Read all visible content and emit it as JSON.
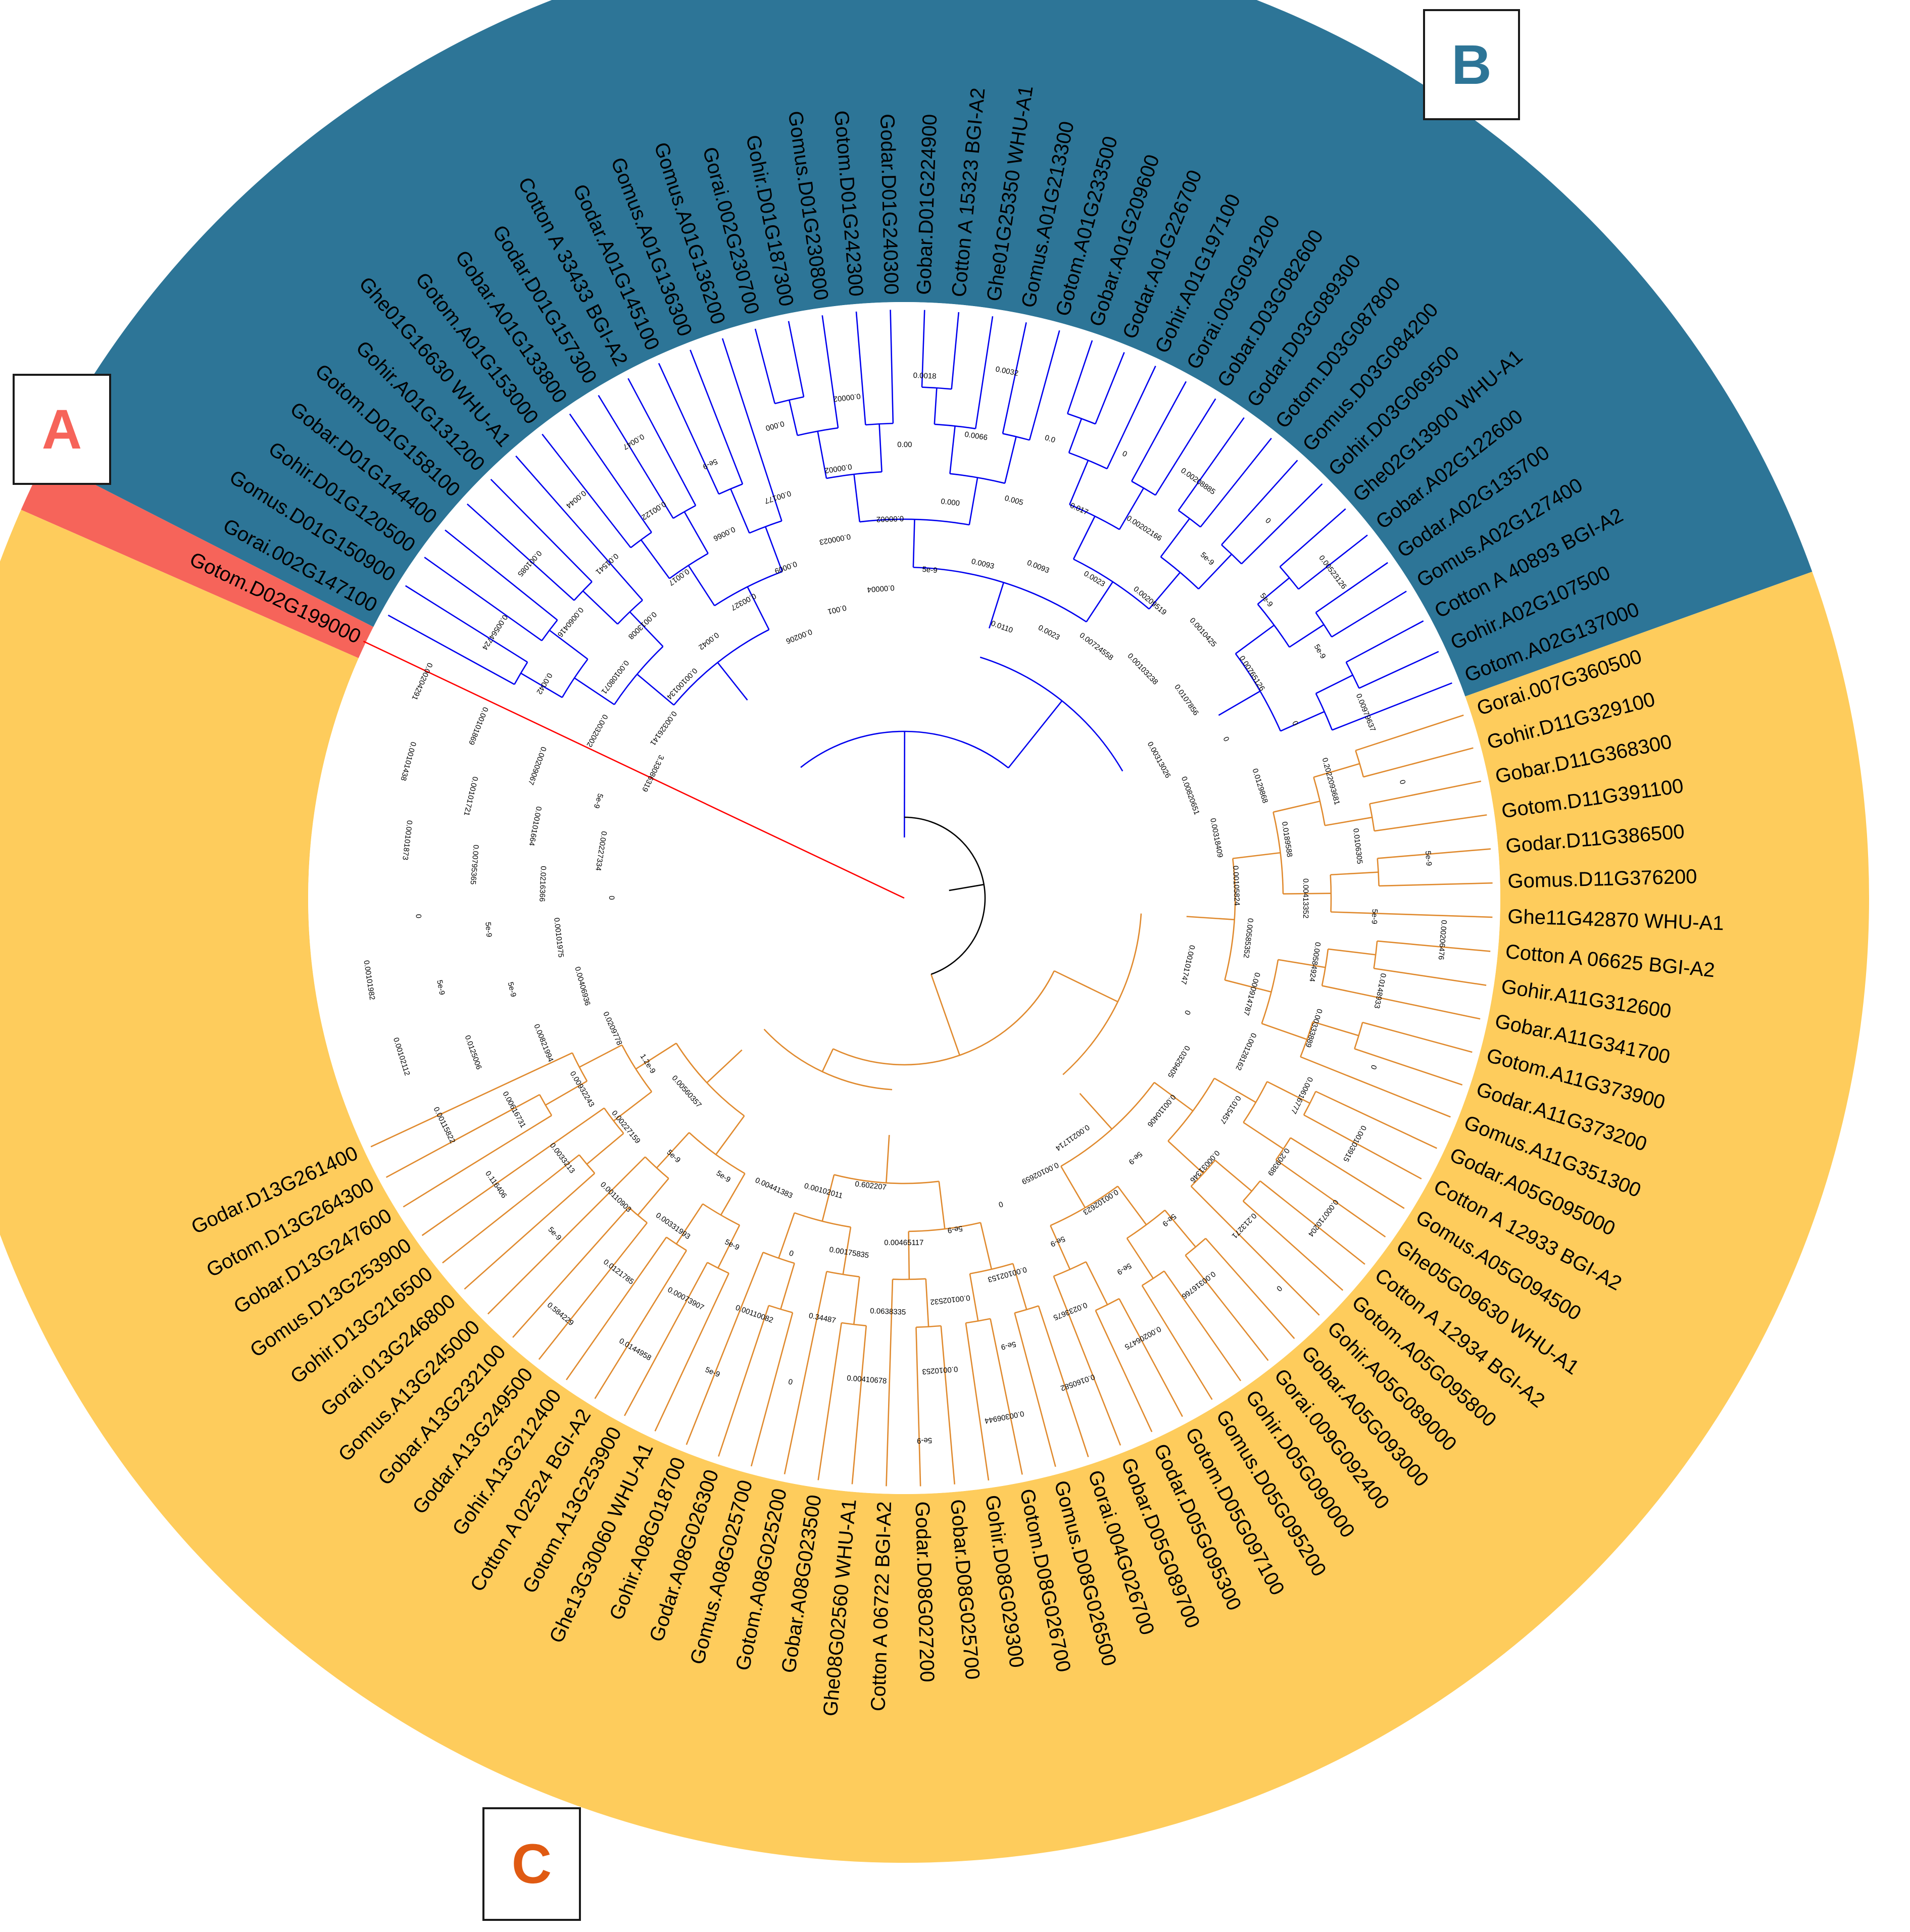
{
  "groups": [
    {
      "id": "A",
      "label": "A",
      "color": "#f6645a"
    },
    {
      "id": "B",
      "label": "B",
      "color": "#2d7597"
    },
    {
      "id": "C",
      "label": "C",
      "color": "#fecc5c"
    }
  ],
  "colors": {
    "branch_a": "#ff0000",
    "branch_b": "#0000ee",
    "branch_c": "#e08a2e",
    "branch_root": "#000000",
    "label_a": "#f6645a",
    "label_b": "#2d7597",
    "label_c": "#e05a12"
  },
  "leaves": [
    {
      "label": "Gotom.D02G199000",
      "group": "A"
    },
    {
      "label": "Gorai.002G147100",
      "group": "B"
    },
    {
      "label": "Gomus.D01G150900",
      "group": "B"
    },
    {
      "label": "Gohir.D01G120500",
      "group": "B"
    },
    {
      "label": "Gobar.D01G144400",
      "group": "B"
    },
    {
      "label": "Gotom.D01G158100",
      "group": "B"
    },
    {
      "label": "Gohir.A01G131200",
      "group": "B"
    },
    {
      "label": "Ghe01G16630 WHU-A1",
      "group": "B"
    },
    {
      "label": "Gotom.A01G153000",
      "group": "B"
    },
    {
      "label": "Gobar.A01G133800",
      "group": "B"
    },
    {
      "label": "Godar.D01G157300",
      "group": "B"
    },
    {
      "label": "Cotton A 33433 BGI-A2",
      "group": "B"
    },
    {
      "label": "Godar.A01G145100",
      "group": "B"
    },
    {
      "label": "Gomus.A01G136300",
      "group": "B"
    },
    {
      "label": "Gomus.A01G136200",
      "group": "B"
    },
    {
      "label": "Gorai.002G230700",
      "group": "B"
    },
    {
      "label": "Gohir.D01G187300",
      "group": "B"
    },
    {
      "label": "Gomus.D01G230800",
      "group": "B"
    },
    {
      "label": "Gotom.D01G242300",
      "group": "B"
    },
    {
      "label": "Godar.D01G240300",
      "group": "B"
    },
    {
      "label": "Gobar.D01G224900",
      "group": "B"
    },
    {
      "label": "Cotton A 15323 BGI-A2",
      "group": "B"
    },
    {
      "label": "Ghe01G25350 WHU-A1",
      "group": "B"
    },
    {
      "label": "Gomus.A01G213300",
      "group": "B"
    },
    {
      "label": "Gotom.A01G233500",
      "group": "B"
    },
    {
      "label": "Gobar.A01G209600",
      "group": "B"
    },
    {
      "label": "Godar.A01G226700",
      "group": "B"
    },
    {
      "label": "Gohir.A01G197100",
      "group": "B"
    },
    {
      "label": "Gorai.003G091200",
      "group": "B"
    },
    {
      "label": "Gobar.D03G082600",
      "group": "B"
    },
    {
      "label": "Godar.D03G089300",
      "group": "B"
    },
    {
      "label": "Gotom.D03G087800",
      "group": "B"
    },
    {
      "label": "Gomus.D03G084200",
      "group": "B"
    },
    {
      "label": "Gohir.D03G069500",
      "group": "B"
    },
    {
      "label": "Ghe02G13900 WHU-A1",
      "group": "B"
    },
    {
      "label": "Gobar.A02G122600",
      "group": "B"
    },
    {
      "label": "Godar.A02G135700",
      "group": "B"
    },
    {
      "label": "Gomus.A02G127400",
      "group": "B"
    },
    {
      "label": "Cotton A 40893 BGI-A2",
      "group": "B"
    },
    {
      "label": "Gohir.A02G107500",
      "group": "B"
    },
    {
      "label": "Gotom.A02G137000",
      "group": "B"
    },
    {
      "label": "Gorai.007G360500",
      "group": "C"
    },
    {
      "label": "Gohir.D11G329100",
      "group": "C"
    },
    {
      "label": "Gobar.D11G368300",
      "group": "C"
    },
    {
      "label": "Gotom.D11G391100",
      "group": "C"
    },
    {
      "label": "Godar.D11G386500",
      "group": "C"
    },
    {
      "label": "Gomus.D11G376200",
      "group": "C"
    },
    {
      "label": "Ghe11G42870 WHU-A1",
      "group": "C"
    },
    {
      "label": "Cotton A 06625 BGI-A2",
      "group": "C"
    },
    {
      "label": "Gohir.A11G312600",
      "group": "C"
    },
    {
      "label": "Gobar.A11G341700",
      "group": "C"
    },
    {
      "label": "Gotom.A11G373900",
      "group": "C"
    },
    {
      "label": "Godar.A11G373200",
      "group": "C"
    },
    {
      "label": "Gomus.A11G351300",
      "group": "C"
    },
    {
      "label": "Godar.A05G095000",
      "group": "C"
    },
    {
      "label": "Cotton A 12933 BGI-A2",
      "group": "C"
    },
    {
      "label": "Gomus.A05G094500",
      "group": "C"
    },
    {
      "label": "Ghe05G09630 WHU-A1",
      "group": "C"
    },
    {
      "label": "Cotton A 12934 BGI-A2",
      "group": "C"
    },
    {
      "label": "Gotom.A05G095800",
      "group": "C"
    },
    {
      "label": "Gohir.A05G089000",
      "group": "C"
    },
    {
      "label": "Gobar.A05G093000",
      "group": "C"
    },
    {
      "label": "Gorai.009G092400",
      "group": "C"
    },
    {
      "label": "Gohir.D05G090000",
      "group": "C"
    },
    {
      "label": "Gomus.D05G095200",
      "group": "C"
    },
    {
      "label": "Gotom.D05G097100",
      "group": "C"
    },
    {
      "label": "Godar.D05G095300",
      "group": "C"
    },
    {
      "label": "Gobar.D05G089700",
      "group": "C"
    },
    {
      "label": "Gorai.004G026700",
      "group": "C"
    },
    {
      "label": "Gomus.D08G026500",
      "group": "C"
    },
    {
      "label": "Gotom.D08G026700",
      "group": "C"
    },
    {
      "label": "Gohir.D08G029300",
      "group": "C"
    },
    {
      "label": "Gobar.D08G025700",
      "group": "C"
    },
    {
      "label": "Godar.D08G027200",
      "group": "C"
    },
    {
      "label": "Cotton A 06722 BGI-A2",
      "group": "C"
    },
    {
      "label": "Ghe08G02560 WHU-A1",
      "group": "C"
    },
    {
      "label": "Gobar.A08G023500",
      "group": "C"
    },
    {
      "label": "Gotom.A08G025200",
      "group": "C"
    },
    {
      "label": "Gomus.A08G025700",
      "group": "C"
    },
    {
      "label": "Godar.A08G026300",
      "group": "C"
    },
    {
      "label": "Gohir.A08G018700",
      "group": "C"
    },
    {
      "label": "Ghe13G30060 WHU-A1",
      "group": "C"
    },
    {
      "label": "Gotom.A13G253900",
      "group": "C"
    },
    {
      "label": "Cotton A 02524 BGI-A2",
      "group": "C"
    },
    {
      "label": "Gohir.A13G212400",
      "group": "C"
    },
    {
      "label": "Godar.A13G249500",
      "group": "C"
    },
    {
      "label": "Gobar.A13G232100",
      "group": "C"
    },
    {
      "label": "Gomus.A13G245000",
      "group": "C"
    },
    {
      "label": "Gorai.013G246800",
      "group": "C"
    },
    {
      "label": "Gohir.D13G216500",
      "group": "C"
    },
    {
      "label": "Gomus.D13G253900",
      "group": "C"
    },
    {
      "label": "Gobar.D13G247600",
      "group": "C"
    },
    {
      "label": "Gotom.D13G264300",
      "group": "C"
    },
    {
      "label": "Godar.D13G261400",
      "group": "C"
    }
  ],
  "branch_labels": [
    "3.33086319",
    "0.0032002",
    "0.0042",
    "0.00564724",
    "0.00326141",
    "0.00108071",
    "0.0060416",
    "0.001085",
    "0.00100134",
    "0.0013008",
    "0.01541",
    "0.0044",
    "0.0042",
    "0.0017",
    "0.00122",
    "0.0047",
    "0.00327",
    "0.0066",
    "5e-9",
    "0.00206",
    "0.0009",
    "0.00177",
    "0.000",
    "0.001",
    "0.000023",
    "0.00002",
    "0.00002",
    "0.00004",
    "0.00002",
    "0.00",
    "0.0018",
    "5e-9",
    "0.000",
    "0.0066",
    "0.0032",
    "0.0093",
    "0.005",
    "0.0",
    "0.0110",
    "0.0093",
    "0.017",
    "0",
    "0.0023",
    "0.0023",
    "0.00202166",
    "0.00208885",
    "0.00724558",
    "0.00209519",
    "5e-9",
    "0",
    "0.00103238",
    "0.0010425",
    "5e-9",
    "0.00523126",
    "0.0107856",
    "0.00765126",
    "5e-9",
    "0.00313026",
    "0",
    "0",
    "0.00979637",
    "0.00820651",
    "0.0129868",
    "0.2022093681",
    "0",
    "0.00318409",
    "0.0189588",
    "0.0106305",
    "5e-9",
    "0.00105824",
    "0.00413352",
    "5e-9",
    "0.00206476",
    "0.00585352",
    "0.00584924",
    "0.0148933",
    "0.00101747",
    "0.000914787",
    "0.00333889",
    "0",
    "0",
    "0.00128162",
    "0.00616777",
    "0.00103915",
    "0.0329405",
    "0.015457",
    "0.209389",
    "0.000710204",
    "0.00110406",
    "0.00031346",
    "0.213271",
    "0",
    "5e-9",
    "5e-9",
    "0.00316766",
    "0.00211714",
    "0.00102623",
    "5e-9",
    "0.00206475",
    "0.00102659",
    "5e-9",
    "0.0233675",
    "0.0160582",
    "0",
    "0.00102153",
    "5e-9",
    "0.00306944",
    "5e-9",
    "0.00102532",
    "0.0010253",
    "5e-9",
    "0.00465117",
    "0.0638335",
    "0.00410678",
    "0.602207",
    "0.00175835",
    "0.34487",
    "0",
    "0.00102011",
    "0",
    "0.00110082",
    "5e-9",
    "0.00441383",
    "5e-9",
    "0.00073907",
    "0.0144958",
    "5e-9",
    "0.00331993",
    "0.0121785",
    "0.584229",
    "5e-9",
    "0.00110903",
    "5e-9",
    "0.00560357",
    "0.00227159",
    "0.0033213",
    "0.116406",
    "1.2e-9",
    "0.00932243",
    "0.00616731",
    "0.00115822",
    "0.0209778",
    "0.00821994",
    "0.0125006",
    "0.00102112",
    "0.00406936",
    "5e-9",
    "5e-9",
    "0.00101982",
    "0.00101975",
    "5e-9",
    "0",
    "0",
    "0.0216366",
    "0.00795365",
    "0.00101873",
    "0.00227334",
    "0.00101664",
    "0.00101721",
    "0.00101438",
    "5e-9",
    "0.00209067",
    "0.00101869",
    "0.00204291"
  ]
}
